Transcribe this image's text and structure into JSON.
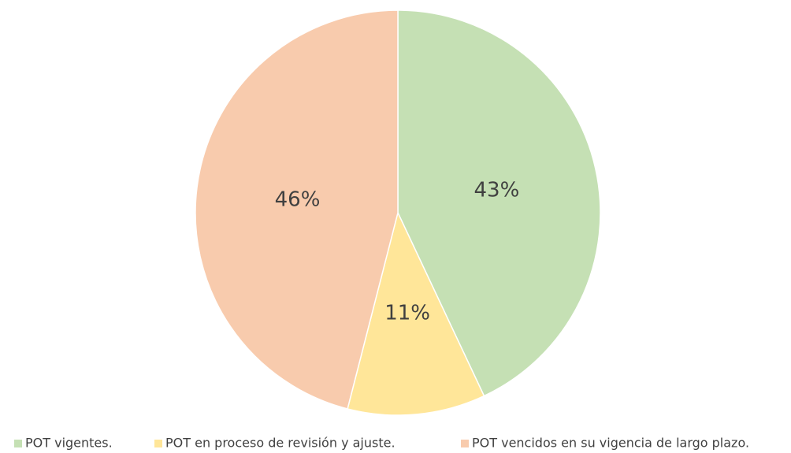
{
  "chart_data": {
    "type": "pie",
    "categories": [
      "POT vigentes.",
      "POT en proceso de revisión y ajuste.",
      "POT vencidos en su vigencia de largo plazo."
    ],
    "values": [
      43,
      11,
      46
    ],
    "value_labels": [
      "43%",
      "11%",
      "46%"
    ],
    "colors": [
      "#c5e0b4",
      "#ffe699",
      "#f8cbad"
    ],
    "legend": "bottom"
  }
}
